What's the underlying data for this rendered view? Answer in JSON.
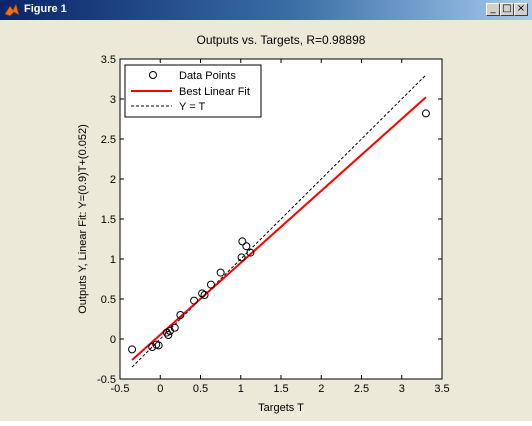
{
  "window": {
    "title": "Figure 1",
    "controls": {
      "minimize": "_",
      "maximize": "□",
      "close": "×"
    }
  },
  "colors": {
    "figure_background": "#ece9d8",
    "axes_background": "#ffffff",
    "fit_line": "#ff0000",
    "identity_line": "#000000",
    "points": "#000000"
  },
  "chart_data": {
    "type": "scatter",
    "title": "Outputs vs. Targets, R=0.98898",
    "xlabel": "Targets T",
    "ylabel": "Outputs Y,  Linear Fit: Y=(0.9)T+(0.052)",
    "xlim": [
      -0.5,
      3.5
    ],
    "ylim": [
      -0.5,
      3.5
    ],
    "xticks": [
      "-0.5",
      "0",
      "0.5",
      "1",
      "1.5",
      "2",
      "2.5",
      "3",
      "3.5"
    ],
    "yticks": [
      "-0.5",
      "0",
      "0.5",
      "1",
      "1.5",
      "2",
      "2.5",
      "3",
      "3.5"
    ],
    "grid": false,
    "legend_position": "top-left",
    "series": [
      {
        "name": "Data Points",
        "kind": "markers",
        "marker": "open-circle",
        "x": [
          -0.35,
          -0.1,
          -0.05,
          -0.02,
          0.08,
          0.1,
          0.12,
          0.18,
          0.25,
          0.42,
          0.52,
          0.55,
          0.63,
          0.75,
          1.01,
          1.02,
          1.07,
          1.12,
          3.3
        ],
        "y": [
          -0.13,
          -0.1,
          -0.07,
          -0.08,
          0.08,
          0.05,
          0.1,
          0.14,
          0.3,
          0.48,
          0.57,
          0.55,
          0.68,
          0.83,
          1.02,
          1.22,
          1.16,
          1.08,
          2.82
        ]
      },
      {
        "name": "Best Linear Fit",
        "kind": "line",
        "style": "solid",
        "slope": 0.9,
        "intercept": 0.052,
        "x_range": [
          -0.35,
          3.3
        ]
      },
      {
        "name": "Y = T",
        "kind": "line",
        "style": "dashed",
        "slope": 1,
        "intercept": 0,
        "x_range": [
          -0.35,
          3.3
        ]
      }
    ]
  }
}
